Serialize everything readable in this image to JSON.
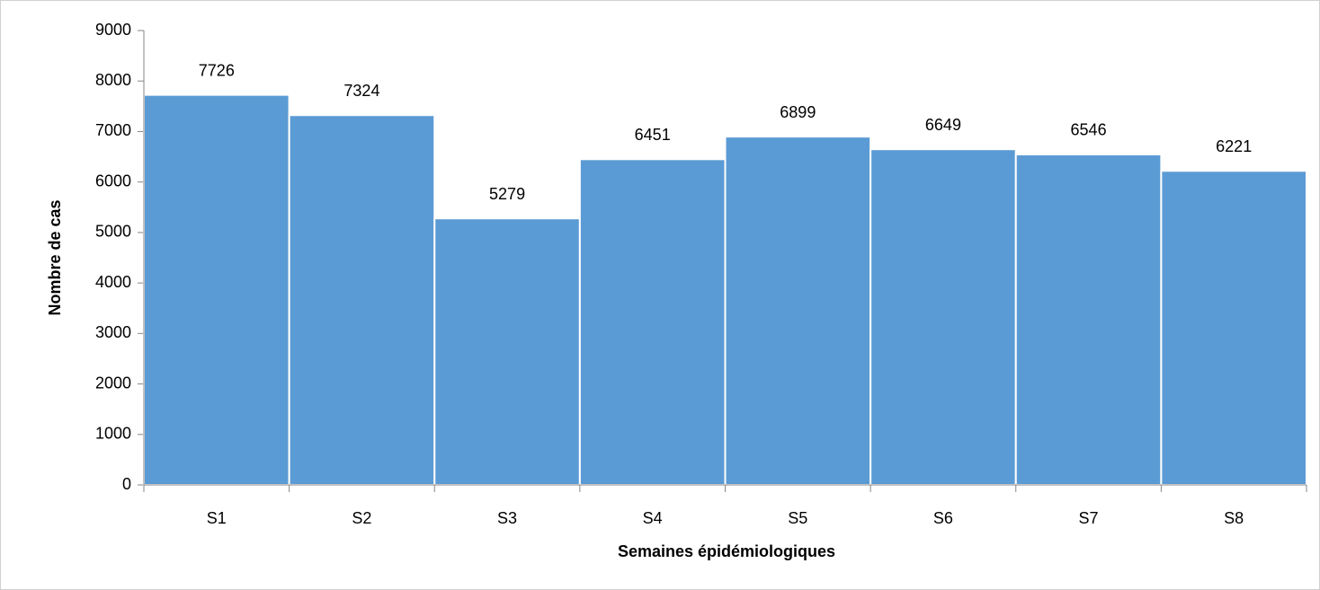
{
  "chart_data": {
    "type": "bar",
    "x_label": "Semaines épidémiologiques",
    "y_label": "Nombre de cas",
    "categories": [
      "S1",
      "S2",
      "S3",
      "S4",
      "S5",
      "S6",
      "S7",
      "S8"
    ],
    "values": [
      7726,
      7324,
      5279,
      6451,
      6899,
      6649,
      6546,
      6221
    ],
    "color": "#5b9bd5",
    "ylim": [
      0,
      9000
    ],
    "yticks": [
      0,
      1000,
      2000,
      3000,
      4000,
      5000,
      6000,
      7000,
      8000,
      9000
    ],
    "grid": false
  }
}
